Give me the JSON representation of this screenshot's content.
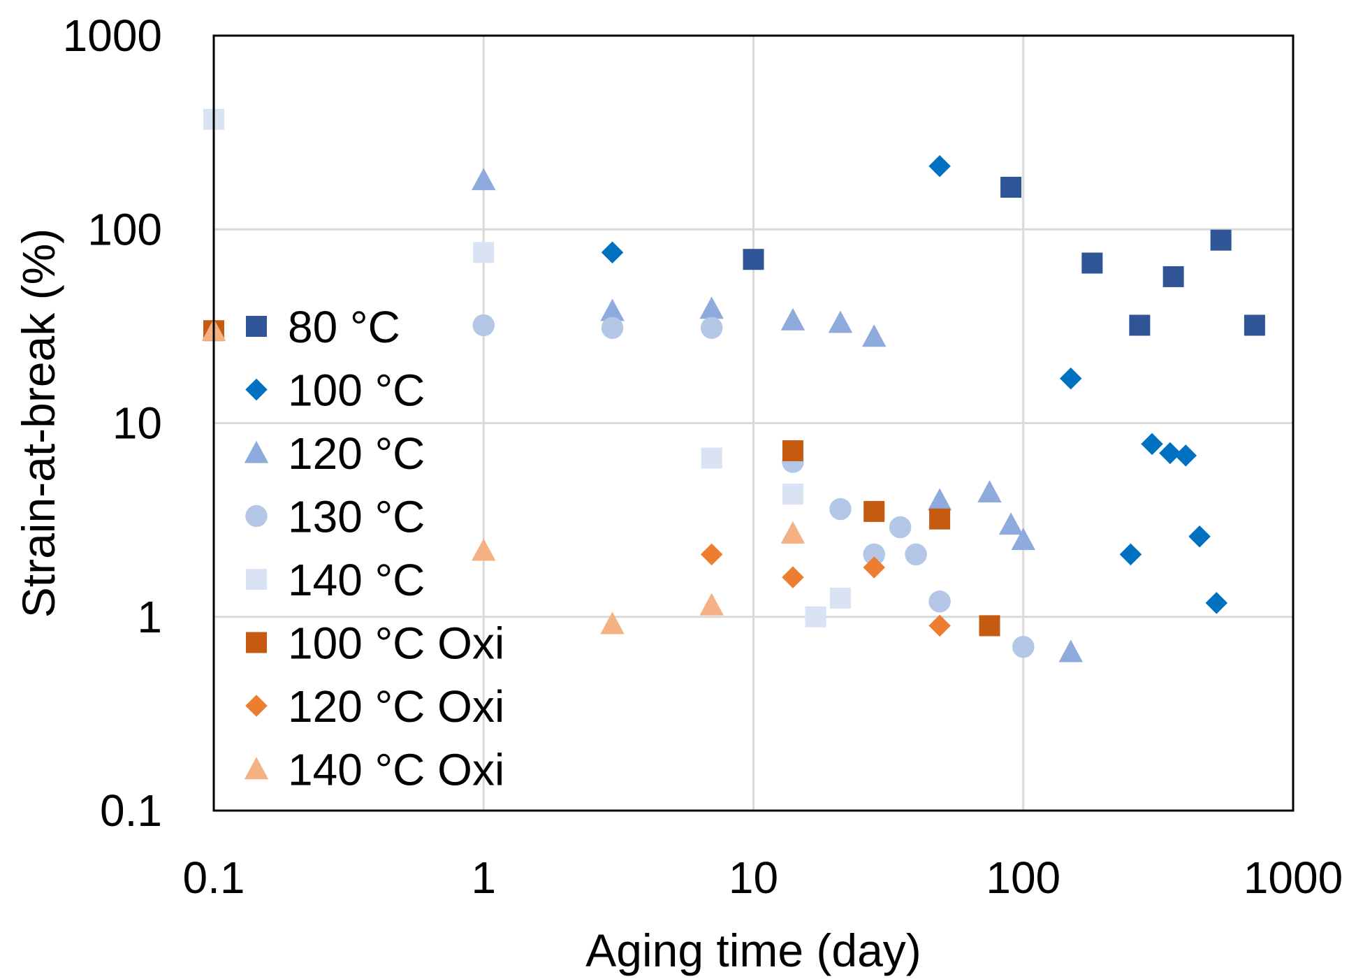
{
  "chart_data": {
    "type": "scatter",
    "xscale": "log",
    "yscale": "log",
    "xlabel": "Aging time (day)",
    "ylabel": "Strain-at-break (%)",
    "xlim": [
      0.1,
      1000
    ],
    "ylim": [
      0.1,
      1000
    ],
    "grid": true,
    "legend_position": "left-center",
    "x_ticks": [
      {
        "value": 0.1,
        "label": "0.1"
      },
      {
        "value": 1,
        "label": "1"
      },
      {
        "value": 10,
        "label": "10"
      },
      {
        "value": 100,
        "label": "100"
      },
      {
        "value": 1000,
        "label": "1000"
      }
    ],
    "y_ticks": [
      {
        "value": 0.1,
        "label": "0.1"
      },
      {
        "value": 1,
        "label": "1"
      },
      {
        "value": 10,
        "label": "10"
      },
      {
        "value": 100,
        "label": "100"
      },
      {
        "value": 1000,
        "label": "1000"
      }
    ],
    "series": [
      {
        "name": "80 °C",
        "marker": "square",
        "color": "#2F5597",
        "points": [
          [
            10,
            70
          ],
          [
            90,
            165
          ],
          [
            180,
            67
          ],
          [
            270,
            32
          ],
          [
            360,
            57
          ],
          [
            540,
            88
          ],
          [
            720,
            32
          ]
        ]
      },
      {
        "name": "100 °C",
        "marker": "diamond",
        "color": "#0070C0",
        "points": [
          [
            3,
            76
          ],
          [
            49,
            212
          ],
          [
            150,
            17
          ],
          [
            250,
            2.1
          ],
          [
            300,
            7.8
          ],
          [
            350,
            7
          ],
          [
            400,
            6.8
          ],
          [
            450,
            2.6
          ],
          [
            520,
            1.18
          ]
        ]
      },
      {
        "name": "120 °C",
        "marker": "triangle",
        "color": "#8FAADC",
        "points": [
          [
            1,
            180
          ],
          [
            3,
            38
          ],
          [
            7,
            39
          ],
          [
            14,
            34
          ],
          [
            21,
            33
          ],
          [
            28,
            28
          ],
          [
            49,
            4
          ],
          [
            75,
            4.4
          ],
          [
            90,
            3
          ],
          [
            100,
            2.5
          ],
          [
            150,
            0.66
          ]
        ]
      },
      {
        "name": "130 °C",
        "marker": "circle",
        "color": "#B4C7E7",
        "points": [
          [
            1,
            32
          ],
          [
            3,
            31
          ],
          [
            7,
            31
          ],
          [
            14,
            6.3
          ],
          [
            21,
            3.6
          ],
          [
            28,
            2.1
          ],
          [
            35,
            2.9
          ],
          [
            40,
            2.1
          ],
          [
            49,
            1.2
          ],
          [
            100,
            0.7
          ]
        ]
      },
      {
        "name": "140 °C",
        "marker": "square",
        "color": "#DAE3F3",
        "points": [
          [
            0.1,
            370
          ],
          [
            1,
            76
          ],
          [
            7,
            6.6
          ],
          [
            14,
            4.3
          ],
          [
            17,
            1.0
          ],
          [
            21,
            1.25
          ]
        ]
      },
      {
        "name": "100 °C Oxi",
        "marker": "square",
        "color": "#C55A11",
        "points": [
          [
            0.1,
            30
          ],
          [
            14,
            7.2
          ],
          [
            28,
            3.5
          ],
          [
            49,
            3.2
          ],
          [
            75,
            0.9
          ]
        ]
      },
      {
        "name": "120 °C Oxi",
        "marker": "diamond",
        "color": "#ED7D31",
        "points": [
          [
            7,
            2.1
          ],
          [
            14,
            1.6
          ],
          [
            28,
            1.8
          ],
          [
            49,
            0.9
          ]
        ]
      },
      {
        "name": "140 °C Oxi",
        "marker": "triangle",
        "color": "#F4B183",
        "points": [
          [
            0.1,
            30
          ],
          [
            1,
            2.2
          ],
          [
            3,
            0.92
          ],
          [
            7,
            1.15
          ],
          [
            14,
            2.7
          ]
        ]
      }
    ]
  }
}
